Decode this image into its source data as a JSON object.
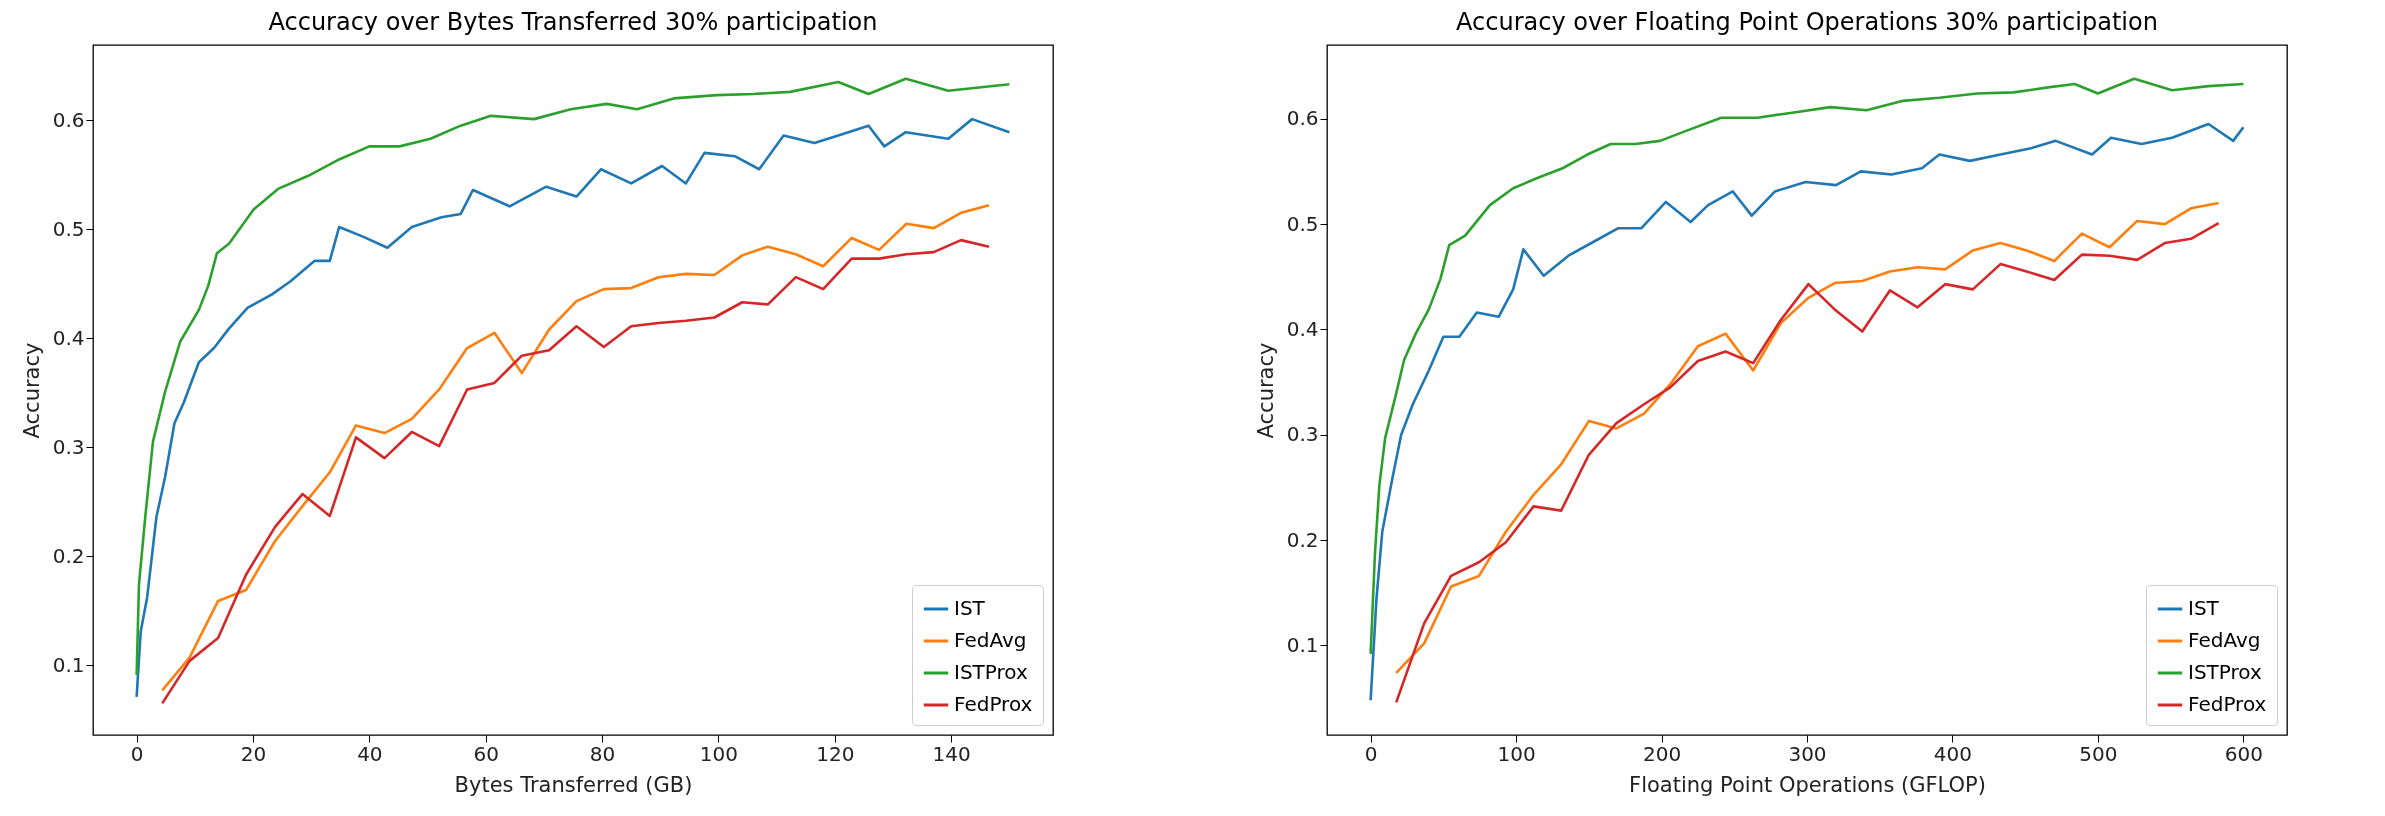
{
  "chart_data": [
    {
      "type": "line",
      "title": "Accuracy over Bytes Transferred 30% participation",
      "xlabel": "Bytes Transferred (GB)",
      "ylabel": "Accuracy",
      "xlim": [
        -7.5,
        157.5
      ],
      "xticks": [
        0,
        20,
        40,
        60,
        80,
        100,
        120,
        140
      ],
      "ylim": [
        0.036,
        0.669
      ],
      "yticks": [
        0.1,
        0.2,
        0.3,
        0.4,
        0.5,
        0.6
      ],
      "legend": "bottom right",
      "series": [
        {
          "name": "IST",
          "color": "#1f77b4",
          "x": [
            0,
            0.7,
            1.8,
            3.4,
            4.9,
            6.5,
            8.1,
            10.7,
            13.3,
            15.9,
            19.1,
            23.2,
            26.4,
            30.6,
            33.2,
            34.8,
            39,
            43.1,
            47.3,
            52.4,
            55.7,
            57.8,
            64.1,
            70.4,
            75.6,
            79.8,
            85,
            90.3,
            94.4,
            97.6,
            102.8,
            107,
            111.2,
            116.5,
            120.6,
            125.8,
            128.5,
            132.2,
            139.5,
            143.6,
            150
          ],
          "values": [
            0.071,
            0.131,
            0.162,
            0.236,
            0.273,
            0.322,
            0.341,
            0.378,
            0.391,
            0.409,
            0.428,
            0.44,
            0.452,
            0.471,
            0.471,
            0.502,
            0.493,
            0.483,
            0.502,
            0.511,
            0.514,
            0.536,
            0.521,
            0.539,
            0.53,
            0.555,
            0.542,
            0.558,
            0.542,
            0.57,
            0.567,
            0.555,
            0.586,
            0.579,
            0.586,
            0.595,
            0.576,
            0.589,
            0.583,
            0.601,
            0.589
          ]
        },
        {
          "name": "FedAvg",
          "color": "#ff7f0e",
          "x": [
            4.4,
            9.1,
            14,
            18.8,
            23.8,
            28.5,
            33.2,
            37.7,
            42.6,
            47.3,
            52,
            56.8,
            61.5,
            66.2,
            70.9,
            75.6,
            80.3,
            85,
            89.7,
            94.4,
            99.3,
            104.1,
            108.5,
            113.3,
            118,
            122.9,
            127.6,
            132.3,
            137,
            141.7,
            146.5
          ],
          "values": [
            0.077,
            0.107,
            0.159,
            0.169,
            0.214,
            0.246,
            0.277,
            0.32,
            0.313,
            0.326,
            0.353,
            0.391,
            0.405,
            0.368,
            0.408,
            0.434,
            0.445,
            0.446,
            0.456,
            0.459,
            0.458,
            0.476,
            0.484,
            0.477,
            0.466,
            0.492,
            0.481,
            0.505,
            0.501,
            0.515,
            0.522
          ]
        },
        {
          "name": "ISTProx",
          "color": "#2ca02c",
          "x": [
            0,
            0.4,
            1.5,
            2.8,
            4.9,
            7.5,
            10.7,
            12.3,
            13.8,
            15.9,
            20.1,
            24.3,
            29.5,
            34.8,
            40,
            45.2,
            50.5,
            55.7,
            60.9,
            68.3,
            74.6,
            80.8,
            86,
            92.3,
            99.7,
            106,
            112.3,
            120.6,
            125.8,
            132.2,
            139.5,
            150
          ],
          "values": [
            0.091,
            0.174,
            0.237,
            0.305,
            0.351,
            0.397,
            0.426,
            0.448,
            0.478,
            0.487,
            0.518,
            0.537,
            0.549,
            0.564,
            0.576,
            0.576,
            0.583,
            0.595,
            0.604,
            0.601,
            0.61,
            0.615,
            0.61,
            0.62,
            0.623,
            0.624,
            0.626,
            0.635,
            0.624,
            0.638,
            0.627,
            0.633
          ]
        },
        {
          "name": "FedProx",
          "color": "#d62728",
          "x": [
            4.4,
            9.1,
            14,
            18.8,
            23.8,
            28.5,
            33.2,
            37.7,
            42.6,
            47.3,
            52,
            56.8,
            61.5,
            66.2,
            70.9,
            75.6,
            80.3,
            85,
            89.7,
            94.4,
            99.3,
            104.1,
            108.5,
            113.3,
            118,
            122.9,
            127.6,
            132.3,
            137,
            141.7,
            146.5
          ],
          "values": [
            0.065,
            0.104,
            0.125,
            0.183,
            0.227,
            0.257,
            0.237,
            0.309,
            0.29,
            0.314,
            0.301,
            0.353,
            0.359,
            0.384,
            0.389,
            0.411,
            0.392,
            0.411,
            0.414,
            0.416,
            0.419,
            0.433,
            0.431,
            0.456,
            0.445,
            0.473,
            0.473,
            0.477,
            0.479,
            0.49,
            0.484
          ]
        }
      ]
    },
    {
      "type": "line",
      "title": "Accuracy over Floating Point Operations 30% participation",
      "xlabel": "Floating Point Operations (GFLOP)",
      "ylabel": "Accuracy",
      "xlim": [
        -30,
        630
      ],
      "xticks": [
        0,
        100,
        200,
        300,
        400,
        500,
        600
      ],
      "ylim": [
        0.015,
        0.67
      ],
      "yticks": [
        0.1,
        0.2,
        0.3,
        0.4,
        0.5,
        0.6
      ],
      "legend": "bottom right",
      "series": [
        {
          "name": "IST",
          "color": "#1f77b4",
          "x": [
            0,
            4,
            8,
            15,
            21,
            29,
            40,
            50,
            61,
            73,
            88,
            98,
            105,
            119,
            136,
            153,
            170,
            186,
            203,
            220,
            232,
            249,
            262,
            278,
            299,
            320,
            337,
            358,
            379,
            391,
            412,
            433,
            454,
            471,
            496,
            509,
            530,
            551,
            576,
            593,
            600
          ],
          "values": [
            0.048,
            0.144,
            0.208,
            0.259,
            0.3,
            0.329,
            0.361,
            0.393,
            0.393,
            0.416,
            0.412,
            0.438,
            0.476,
            0.451,
            0.47,
            0.483,
            0.496,
            0.496,
            0.521,
            0.502,
            0.518,
            0.531,
            0.508,
            0.531,
            0.54,
            0.537,
            0.55,
            0.547,
            0.553,
            0.566,
            0.56,
            0.566,
            0.572,
            0.579,
            0.566,
            0.582,
            0.576,
            0.582,
            0.595,
            0.579,
            0.592
          ]
        },
        {
          "name": "FedAvg",
          "color": "#ff7f0e",
          "x": [
            17.6,
            36.8,
            55.3,
            74.5,
            93,
            112,
            131,
            150,
            169,
            188,
            206,
            225,
            244,
            263,
            282,
            301,
            319,
            338,
            357,
            376,
            395,
            414,
            433,
            451,
            470,
            489,
            508,
            527,
            546,
            564,
            583
          ],
          "values": [
            0.074,
            0.102,
            0.156,
            0.166,
            0.208,
            0.243,
            0.272,
            0.313,
            0.306,
            0.32,
            0.348,
            0.384,
            0.396,
            0.361,
            0.406,
            0.43,
            0.444,
            0.446,
            0.455,
            0.459,
            0.457,
            0.475,
            0.482,
            0.475,
            0.465,
            0.491,
            0.478,
            0.503,
            0.5,
            0.515,
            0.52
          ]
        },
        {
          "name": "ISTProx",
          "color": "#2ca02c",
          "x": [
            0,
            3,
            6,
            10,
            17,
            23,
            31,
            40,
            48,
            54,
            65,
            82,
            98,
            115,
            132,
            149,
            165,
            182,
            199,
            216,
            241,
            266,
            291,
            316,
            341,
            366,
            391,
            417,
            442,
            467,
            484,
            500,
            525,
            551,
            576,
            600
          ],
          "values": [
            0.092,
            0.188,
            0.252,
            0.297,
            0.336,
            0.371,
            0.396,
            0.419,
            0.448,
            0.48,
            0.489,
            0.518,
            0.534,
            0.544,
            0.553,
            0.566,
            0.576,
            0.576,
            0.579,
            0.588,
            0.601,
            0.601,
            0.606,
            0.611,
            0.608,
            0.617,
            0.62,
            0.624,
            0.625,
            0.63,
            0.633,
            0.624,
            0.638,
            0.627,
            0.631,
            0.633
          ]
        },
        {
          "name": "FedProx",
          "color": "#d62728",
          "x": [
            17.6,
            36.8,
            55.3,
            74.5,
            93,
            112,
            131,
            150,
            169,
            188,
            206,
            225,
            244,
            263,
            282,
            301,
            319,
            338,
            357,
            376,
            395,
            414,
            433,
            451,
            470,
            489,
            508,
            527,
            546,
            564,
            583
          ],
          "values": [
            0.046,
            0.121,
            0.166,
            0.179,
            0.198,
            0.232,
            0.228,
            0.281,
            0.311,
            0.329,
            0.345,
            0.37,
            0.379,
            0.368,
            0.409,
            0.443,
            0.419,
            0.398,
            0.437,
            0.421,
            0.443,
            0.438,
            0.462,
            0.455,
            0.447,
            0.471,
            0.47,
            0.466,
            0.482,
            0.486,
            0.501
          ]
        }
      ]
    }
  ]
}
